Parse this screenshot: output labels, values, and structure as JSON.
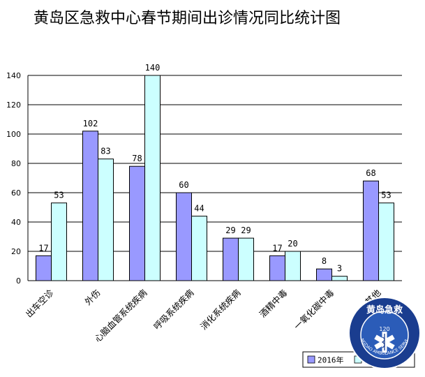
{
  "colors": {
    "series1_fill": "#9999ff",
    "series2_fill": "#ccffff",
    "bar_stroke": "#000000",
    "grid": "#000000",
    "logo_outer": "#1a3d8f",
    "logo_inner": "#2b5cb8",
    "logo_text": "#ffffff",
    "logo_line": "#f2c200"
  },
  "chart_data": {
    "type": "bar",
    "title": "黄岛区急救中心春节期间出诊情况同比统计图",
    "categories": [
      "出车空诊",
      "外伤",
      "心脑血管系统疾病",
      "呼吸系统疾病",
      "消化系统疾病",
      "酒精中毒",
      "一氧化碳中毒",
      "其他"
    ],
    "series": [
      {
        "name": "2016年",
        "values": [
          17,
          102,
          78,
          60,
          29,
          17,
          8,
          68
        ]
      },
      {
        "name": "",
        "values": [
          53,
          83,
          140,
          44,
          29,
          20,
          3,
          53
        ]
      }
    ],
    "ylim": [
      0,
      140
    ],
    "yticks": [
      "0",
      "20",
      "40",
      "60",
      "80",
      "100",
      "120",
      "140"
    ],
    "grid": true,
    "legend_position": "bottom-right"
  },
  "logo": {
    "top_text": "黄岛急救",
    "number": "120",
    "bottom_text": "QINGDAO AMBULANCE SERVICE",
    "icon": "star-of-life-icon"
  }
}
